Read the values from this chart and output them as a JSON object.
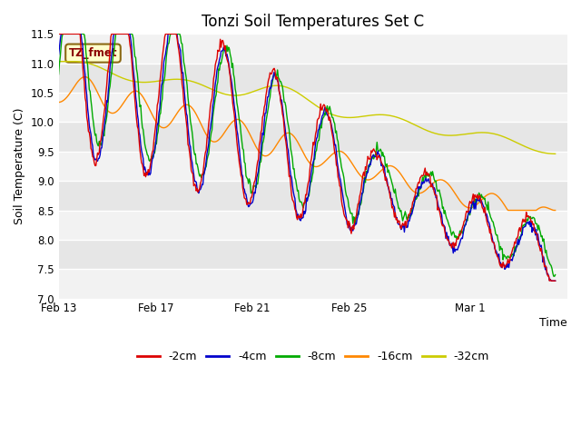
{
  "title": "Tonzi Soil Temperatures Set C",
  "xlabel": "Time",
  "ylabel": "Soil Temperature (C)",
  "ylim": [
    7.0,
    11.5
  ],
  "yticks": [
    7.0,
    7.5,
    8.0,
    8.5,
    9.0,
    9.5,
    10.0,
    10.5,
    11.0,
    11.5
  ],
  "xtick_labels": [
    "Feb 13",
    "Feb 17",
    "Feb 21",
    "Feb 25",
    "Mar 1"
  ],
  "colors": {
    "-2cm": "#dd0000",
    "-4cm": "#0000cc",
    "-8cm": "#00aa00",
    "-16cm": "#ff8800",
    "-32cm": "#cccc00"
  },
  "annotation_text": "TZ_fmet",
  "bg_color": "#ffffff",
  "plot_bg_color": "#ffffff",
  "legend_entries": [
    "-2cm",
    "-4cm",
    "-8cm",
    "-16cm",
    "-32cm"
  ],
  "n_points": 600,
  "title_fontsize": 12,
  "figsize": [
    6.4,
    4.8
  ],
  "dpi": 100
}
